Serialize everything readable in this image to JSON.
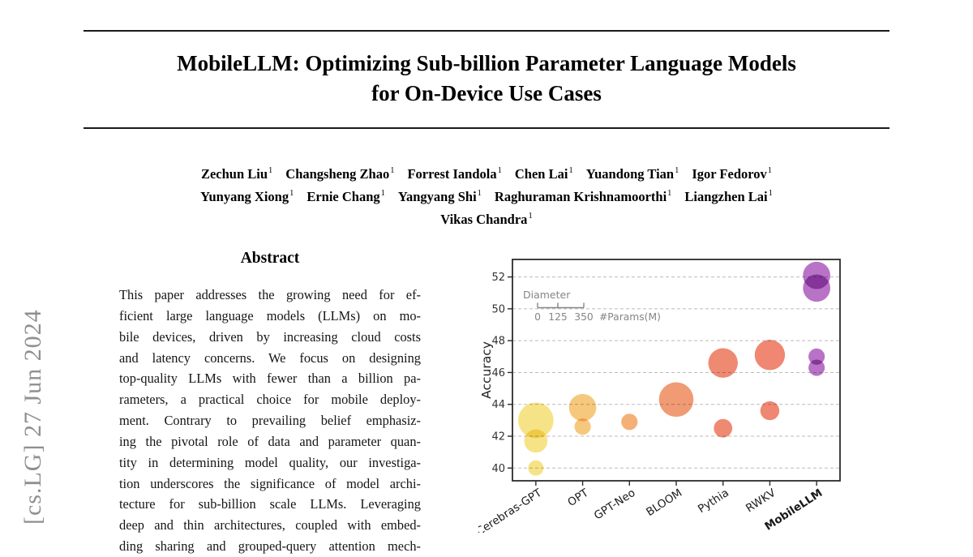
{
  "header": {
    "title_lines": [
      "MobileLLM: Optimizing Sub-billion Parameter Language Models",
      "for On-Device Use Cases"
    ]
  },
  "sidebar_stamp": {
    "text": "[cs.LG]  27 Jun 2024"
  },
  "authors": {
    "affiliation_mark": "1",
    "lines": [
      [
        "Zechun Liu",
        "Changsheng Zhao",
        "Forrest Iandola",
        "Chen Lai",
        "Yuandong Tian",
        "Igor Fedorov"
      ],
      [
        "Yunyang Xiong",
        "Ernie Chang",
        "Yangyang Shi",
        "Raghuraman Krishnamoorthi",
        "Liangzhen Lai"
      ],
      [
        "Vikas Chandra"
      ]
    ]
  },
  "abstract": {
    "heading": "Abstract",
    "lines": [
      "This paper addresses the growing need for ef-",
      "ficient large language models (LLMs) on mo-",
      "bile devices, driven by increasing cloud costs",
      "and latency concerns.  We focus on designing",
      "top-quality LLMs with fewer than a billion pa-",
      "rameters, a practical choice for mobile deploy-",
      "ment.  Contrary to prevailing belief emphasiz-",
      "ing the pivotal role of data and parameter quan-",
      "tity in determining model quality, our investiga-",
      "tion underscores the significance of model archi-",
      "tecture for sub-billion scale LLMs.  Leveraging",
      "deep and thin architectures, coupled with embed-",
      "ding sharing and grouped-query attention mech-"
    ]
  },
  "chart_data": {
    "type": "scatter",
    "subtype": "bubble",
    "title": "",
    "xlabel": "",
    "ylabel": "Accuracy",
    "ylim": [
      39.2,
      53.1
    ],
    "yticks": [
      40,
      42,
      44,
      46,
      48,
      50,
      52
    ],
    "grid": "horizontal dashed",
    "legend": {
      "title": "Diameter",
      "tick_values": [
        "0",
        "125",
        "350"
      ],
      "units_label": "#Params(M)",
      "position": "upper-left-inside"
    },
    "categories": [
      "Cerebras-GPT",
      "OPT",
      "GPT-Neo",
      "BLOOM",
      "Pythia",
      "RWKV",
      "MobileLLM"
    ],
    "series": [
      {
        "name": "Cerebras-GPT",
        "color": "#F7E387",
        "bold_label": false,
        "points": [
          {
            "accuracy": 43.0,
            "params_m": 590
          },
          {
            "accuracy": 41.7,
            "params_m": 256
          },
          {
            "accuracy": 40.0,
            "params_m": 111
          }
        ]
      },
      {
        "name": "OPT",
        "color": "#F6C87E",
        "bold_label": false,
        "points": [
          {
            "accuracy": 43.8,
            "params_m": 350
          },
          {
            "accuracy": 42.6,
            "params_m": 125
          }
        ]
      },
      {
        "name": "GPT-Neo",
        "color": "#F4B077",
        "bold_label": false,
        "points": [
          {
            "accuracy": 42.9,
            "params_m": 125
          }
        ]
      },
      {
        "name": "BLOOM",
        "color": "#F09B74",
        "bold_label": false,
        "points": [
          {
            "accuracy": 44.3,
            "params_m": 560
          }
        ]
      },
      {
        "name": "Pythia",
        "color": "#EF8A72",
        "bold_label": false,
        "points": [
          {
            "accuracy": 46.6,
            "params_m": 410
          },
          {
            "accuracy": 42.5,
            "params_m": 160
          }
        ]
      },
      {
        "name": "RWKV",
        "color": "#EF8772",
        "bold_label": false,
        "points": [
          {
            "accuracy": 47.1,
            "params_m": 430
          },
          {
            "accuracy": 43.6,
            "params_m": 169
          }
        ]
      },
      {
        "name": "MobileLLM",
        "color": "#B873C6",
        "bold_label": true,
        "points": [
          {
            "accuracy": 52.1,
            "params_m": 350
          },
          {
            "accuracy": 51.3,
            "params_m": 350
          },
          {
            "accuracy": 47.0,
            "params_m": 125
          },
          {
            "accuracy": 46.3,
            "params_m": 125
          }
        ]
      }
    ],
    "axis_colors": {
      "spine": "#2b2b2b",
      "tick_label": "#333333",
      "grid": "#bbbbbb",
      "legend_text": "#858585"
    }
  }
}
